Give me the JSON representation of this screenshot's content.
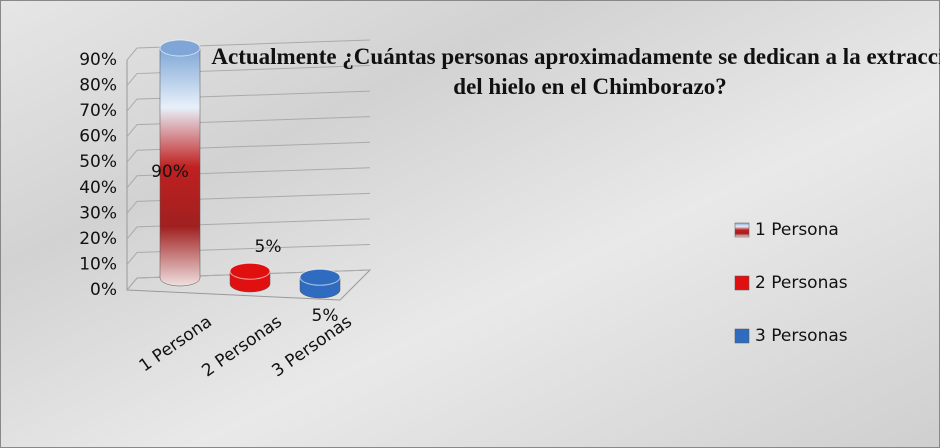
{
  "chart_data": {
    "type": "bar3d",
    "title": "Actualmente ¿Cuántas personas aproximadamente se dedican a la extracción del hielo en el Chimborazo?",
    "categories": [
      "1 Persona",
      "2 Personas",
      "3 Personas"
    ],
    "values": [
      90,
      5,
      5
    ],
    "value_labels": [
      "90%",
      "5%",
      "5%"
    ],
    "colors": [
      "#9bbbe0",
      "#e01010",
      "#2f6cc0"
    ],
    "ylim": [
      0,
      90
    ],
    "yticks": [
      {
        "value": 0,
        "label": "0%"
      },
      {
        "value": 10,
        "label": "10%"
      },
      {
        "value": 20,
        "label": "20%"
      },
      {
        "value": 30,
        "label": "30%"
      },
      {
        "value": 40,
        "label": "40%"
      },
      {
        "value": 50,
        "label": "50%"
      },
      {
        "value": 60,
        "label": "60%"
      },
      {
        "value": 70,
        "label": "70%"
      },
      {
        "value": 80,
        "label": "80%"
      },
      {
        "value": 90,
        "label": "90%"
      }
    ],
    "grid": true,
    "legend": "right"
  }
}
